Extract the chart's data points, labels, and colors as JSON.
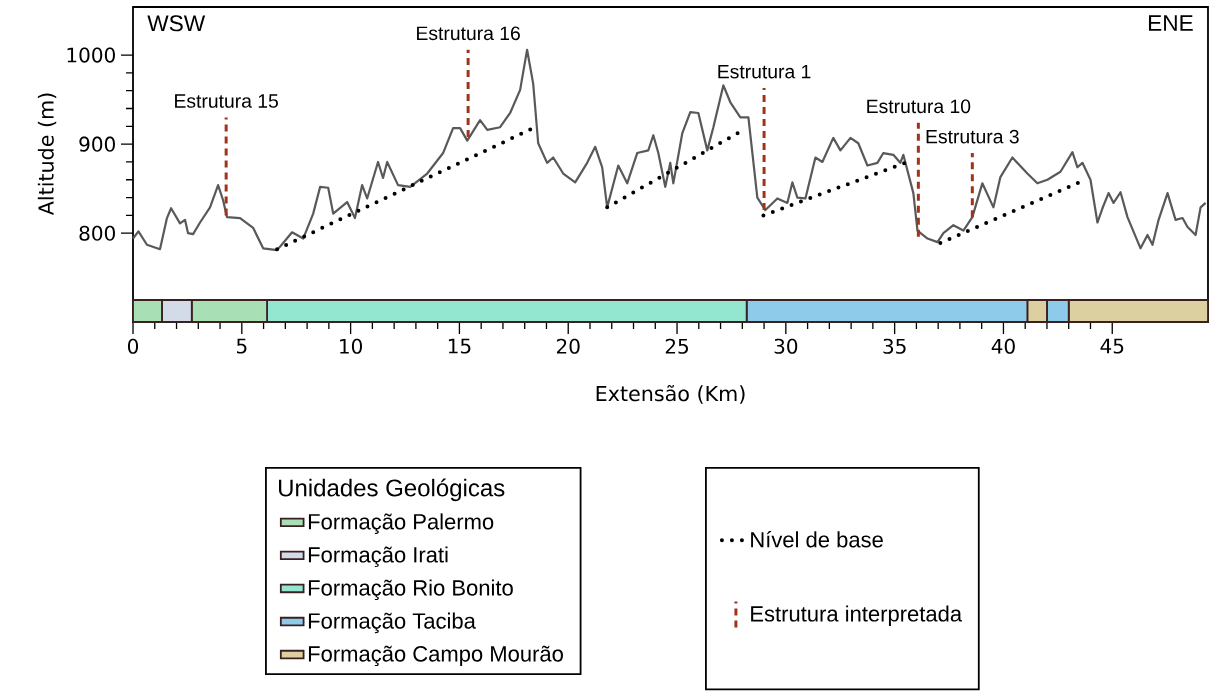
{
  "chart_data": [
    {
      "type": "line",
      "ylabel": "Altitude (m)",
      "xlim": [
        0,
        49.4
      ],
      "ylim": [
        725,
        1054
      ],
      "yticks": [
        800,
        900,
        1000
      ],
      "tick_labels": "y",
      "legend": "bottom",
      "annotations": [
        "WSW",
        "ENE",
        "Estrutura 15",
        "Estrutura 16",
        "Estrutura 1",
        "Estrutura 10",
        "Estrutura 3"
      ],
      "series": [
        {
          "color": "#595959",
          "line_style": "solid",
          "x": [
            0,
            0.25,
            0.64,
            1.24,
            1.56,
            1.75,
            2.16,
            2.39,
            2.53,
            2.76,
            3.08,
            3.54,
            3.91,
            4.14,
            4.32,
            4.92,
            5.52,
            5.98,
            6.62,
            6.9,
            7.31,
            7.82,
            8.28,
            8.6,
            8.97,
            9.2,
            9.84,
            10.2,
            10.53,
            10.76,
            11.26,
            11.49,
            11.68,
            12.18,
            12.74,
            13.52,
            14.25,
            14.71,
            15.03,
            15.36,
            15.95,
            16.28,
            16.87,
            17.33,
            17.79,
            18.11,
            18.39,
            18.62,
            19.03,
            19.31,
            19.77,
            20.32,
            20.87,
            21.24,
            21.56,
            21.79,
            22.3,
            22.71,
            23.17,
            23.68,
            23.91,
            24.14,
            24.46,
            24.69,
            24.83,
            25.24,
            25.61,
            25.98,
            26.39,
            26.67,
            27.13,
            27.45,
            27.91,
            28.28,
            28.69,
            29.06,
            29.61,
            30.07,
            30.3,
            30.53,
            30.9,
            31.36,
            31.68,
            32.18,
            32.51,
            32.97,
            33.33,
            33.75,
            34.21,
            34.48,
            34.94,
            35.26,
            35.4,
            35.86,
            36.05,
            36.51,
            36.97,
            37.24,
            37.7,
            38.16,
            38.57,
            39.03,
            39.54,
            39.86,
            40.41,
            41.1,
            41.56,
            42.02,
            42.62,
            43.17,
            43.4,
            43.63,
            44.0,
            44.32,
            44.55,
            44.83,
            45.06,
            45.38,
            45.7,
            46.3,
            46.62,
            46.85,
            47.13,
            47.54,
            47.91,
            48.23,
            48.46,
            48.83,
            49.06,
            49.29
          ],
          "values": [
            794,
            802,
            787,
            782,
            817,
            828,
            811,
            815,
            800,
            799,
            812,
            829,
            854,
            837,
            818,
            817,
            806,
            783,
            781,
            789,
            801,
            794,
            822,
            852,
            851,
            822,
            835,
            817,
            854,
            839,
            880,
            862,
            880,
            854,
            852,
            867,
            890,
            918,
            918,
            904,
            927,
            916,
            919,
            935,
            961,
            1006,
            968,
            901,
            879,
            885,
            867,
            857,
            879,
            897,
            874,
            829,
            876,
            856,
            890,
            893,
            910,
            890,
            852,
            879,
            856,
            912,
            936,
            935,
            893,
            919,
            966,
            947,
            930,
            930,
            840,
            826,
            839,
            834,
            857,
            840,
            839,
            885,
            880,
            907,
            893,
            907,
            901,
            876,
            879,
            890,
            888,
            879,
            888,
            845,
            803,
            794,
            790,
            800,
            809,
            803,
            818,
            856,
            829,
            863,
            885,
            867,
            856,
            860,
            869,
            891,
            874,
            879,
            860,
            812,
            828,
            845,
            834,
            846,
            818,
            783,
            798,
            787,
            815,
            845,
            815,
            817,
            807,
            798,
            829,
            834
          ]
        },
        {
          "name": "Nível de base",
          "color": "#000000",
          "line_style": "dotted",
          "x": [
            6.62,
            18.48
          ],
          "values": [
            782,
            919
          ]
        },
        {
          "color": "#000000",
          "line_style": "dotted",
          "x": [
            21.79,
            28.05
          ],
          "values": [
            829,
            916
          ]
        },
        {
          "color": "#000000",
          "line_style": "dotted",
          "x": [
            28.97,
            35.49
          ],
          "values": [
            820,
            879
          ]
        },
        {
          "color": "#000000",
          "line_style": "dotted",
          "x": [
            37.1,
            43.77
          ],
          "values": [
            789,
            860
          ]
        },
        {
          "name": "Estrutura interpretada",
          "color": "#a0341a",
          "line_style": "dashed",
          "x": [
            4.28,
            4.28
          ],
          "values": [
            820,
            930
          ]
        },
        {
          "color": "#a0341a",
          "line_style": "dashed",
          "x": [
            15.4,
            15.4
          ],
          "values": [
            908,
            1006
          ]
        },
        {
          "color": "#a0341a",
          "line_style": "dashed",
          "x": [
            29.0,
            29.0
          ],
          "values": [
            826,
            963
          ]
        },
        {
          "color": "#a0341a",
          "line_style": "dashed",
          "x": [
            36.09,
            36.09
          ],
          "values": [
            796,
            924
          ]
        },
        {
          "color": "#a0341a",
          "line_style": "dashed",
          "x": [
            38.57,
            38.57
          ],
          "values": [
            818,
            890
          ]
        }
      ]
    },
    {
      "type": "bar",
      "orientation": "horizontal",
      "stacked": true,
      "categories": [
        null
      ],
      "xlabel": "Extensão (Km)",
      "xlim": [
        0,
        49.4
      ],
      "xticks": [
        0,
        5,
        10,
        15,
        20,
        25,
        30,
        35,
        40,
        45
      ],
      "legend": "bottom",
      "legend_title": "Unidades Geológicas",
      "series": [
        {
          "name": "Formação Palermo",
          "color": "#a8dfb4",
          "values": [
            1.33
          ]
        },
        {
          "name": "Formação Irati",
          "color": "#d3dbe8",
          "values": [
            1.37
          ]
        },
        {
          "color": "#a8dfb4",
          "values": [
            3.46
          ]
        },
        {
          "name": "Formação Rio Bonito",
          "color": "#93e6cf",
          "values": [
            22.04
          ]
        },
        {
          "name": "Formação Taciba",
          "color": "#8ecbea",
          "values": [
            12.9
          ]
        },
        {
          "name": "Formação Campo Mourão",
          "color": "#ddd0a0",
          "values": [
            0.9
          ]
        },
        {
          "color": "#8ecbea",
          "values": [
            1.0
          ]
        },
        {
          "color": "#ddd0a0",
          "values": [
            6.4
          ]
        }
      ]
    }
  ]
}
